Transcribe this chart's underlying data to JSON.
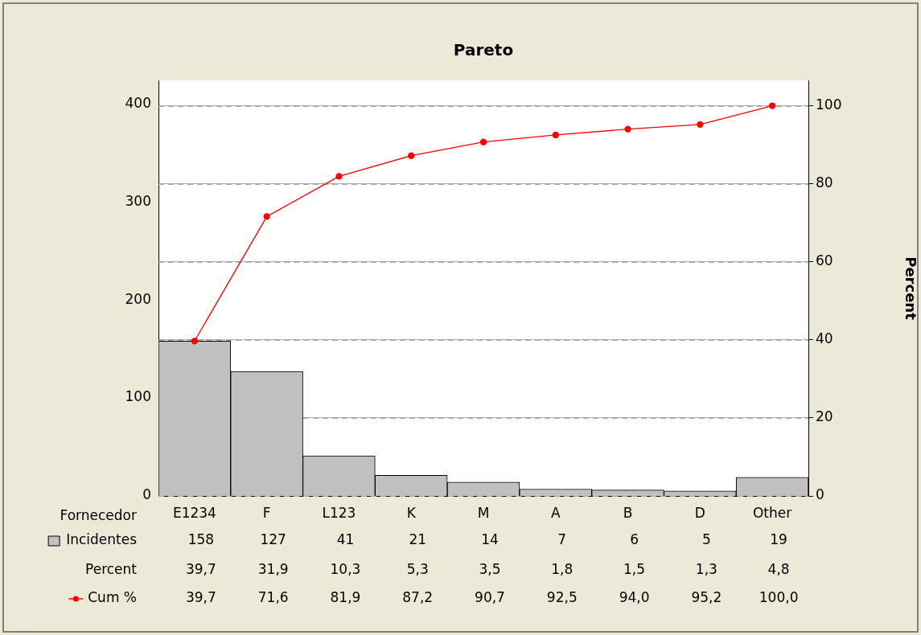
{
  "chart_data": {
    "type": "bar",
    "title": "Pareto",
    "xlabel": "Fornecedor",
    "y2label": "Percent",
    "categories": [
      "E1234",
      "F",
      "L123",
      "K",
      "M",
      "A",
      "B",
      "D",
      "Other"
    ],
    "series": [
      {
        "name": "Incidentes",
        "color": "#c0c0c0",
        "values": [
          158,
          127,
          41,
          21,
          14,
          7,
          6,
          5,
          19
        ],
        "value_labels": [
          "158",
          "127",
          "41",
          "21",
          "14",
          "7",
          "6",
          "5",
          "19"
        ]
      },
      {
        "name": "Cum %",
        "type": "line",
        "axis": "y2",
        "color": "#ff0000",
        "values": [
          39.7,
          71.6,
          81.9,
          87.2,
          90.7,
          92.5,
          94.0,
          95.2,
          100.0
        ],
        "value_labels": [
          "39,7",
          "71,6",
          "81,9",
          "87,2",
          "90,7",
          "92,5",
          "94,0",
          "95,2",
          "100,0"
        ]
      }
    ],
    "annotations": [
      "Percent",
      "39,7",
      "31,9",
      "10,3",
      "5,3",
      "3,5",
      "1,8",
      "1,5",
      "1,3",
      "4,8"
    ],
    "ylim": [
      0,
      424
    ],
    "yticks": [
      0,
      100,
      200,
      300,
      400
    ],
    "y2lim": [
      0,
      106.5
    ],
    "y2ticks": [
      0,
      20,
      40,
      60,
      80,
      100
    ],
    "grid": "y2",
    "legend": "bottom left",
    "marker": "circle",
    "line_style": "solid"
  }
}
